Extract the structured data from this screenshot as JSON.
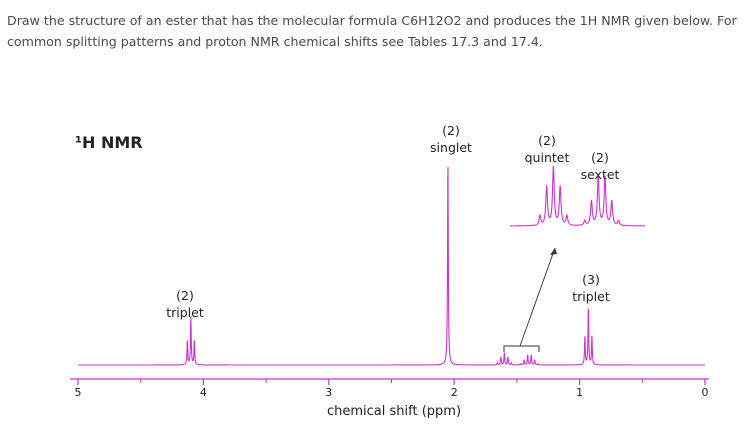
{
  "question": {
    "text": "Draw the structure of an ester that has the molecular formula C6H12O2 and produces the 1H NMR given below. For common splitting patterns and proton NMR chemical shifts see Tables 17.3 and 17.4."
  },
  "colors": {
    "spectrum": "#cc33cc",
    "axis": "#cc33cc",
    "text": "#4a4a4a"
  },
  "chart_data": {
    "type": "line",
    "title": "¹H NMR",
    "xlabel": "chemical shift (ppm)",
    "ylabel": "",
    "xlim": [
      5,
      0
    ],
    "reversed_x_axis": true,
    "x_tick_labels": [
      "5",
      "4",
      "3",
      "2",
      "1",
      "0"
    ],
    "x_ticks": [
      5,
      4,
      3,
      2,
      1,
      0
    ],
    "grid": false,
    "peaks": [
      {
        "shift": 4.1,
        "integration": "(2)",
        "multiplicity": "triplet",
        "relative_height": 0.24
      },
      {
        "shift": 2.05,
        "integration": "(2)",
        "multiplicity": "singlet",
        "relative_height": 1.0
      },
      {
        "shift": 1.6,
        "integration": "(2)",
        "multiplicity": "quintet",
        "relative_height": 0.06
      },
      {
        "shift": 1.4,
        "integration": "(2)",
        "multiplicity": "sextet",
        "relative_height": 0.05
      },
      {
        "shift": 0.93,
        "integration": "(3)",
        "multiplicity": "triplet",
        "relative_height": 0.28
      }
    ],
    "annotations": [
      {
        "for": "peak-4.1",
        "count": "(2)",
        "label": "triplet"
      },
      {
        "for": "peak-2.05",
        "count": "(2)",
        "label": "singlet"
      },
      {
        "for": "inset-quintet",
        "count": "(2)",
        "label": "quintet"
      },
      {
        "for": "inset-sextet",
        "count": "(2)",
        "label": "sextet"
      },
      {
        "for": "peak-0.93",
        "count": "(3)",
        "label": "triplet"
      }
    ]
  }
}
